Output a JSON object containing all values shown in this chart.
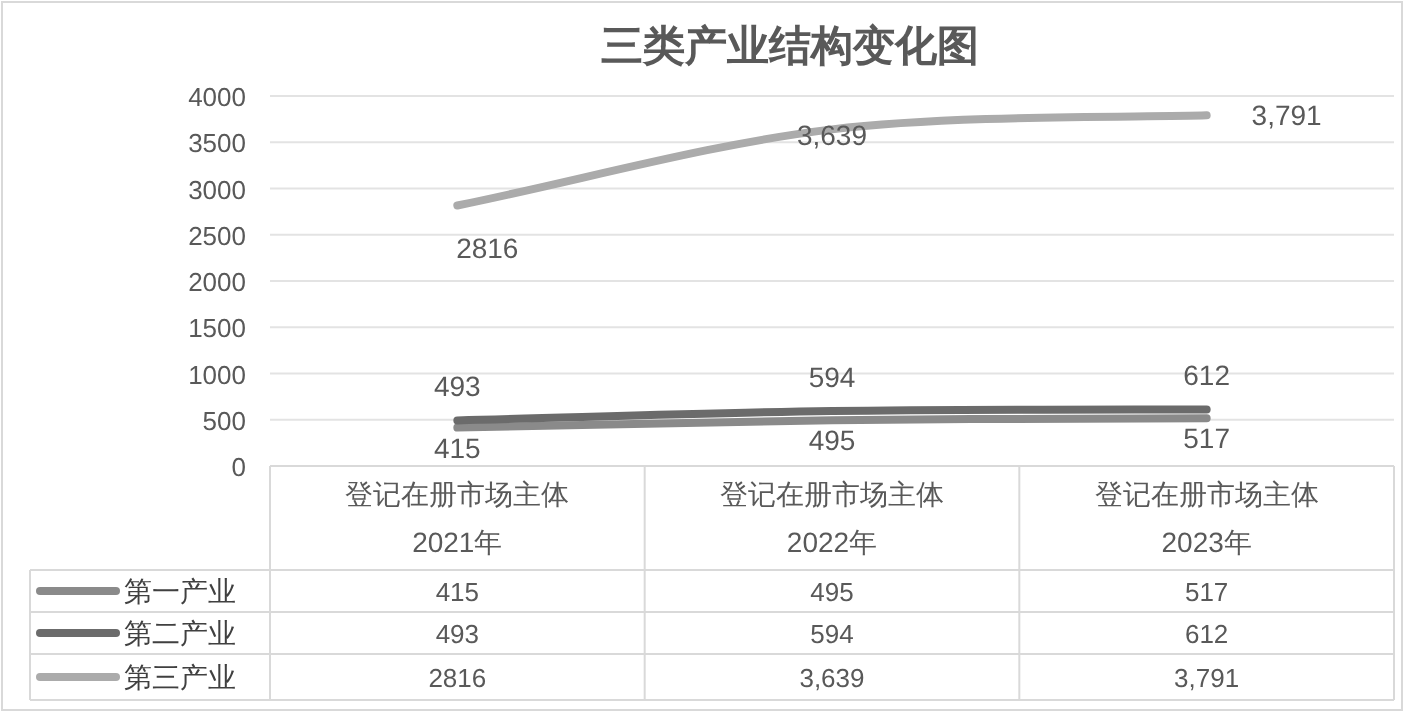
{
  "chart_data": {
    "type": "line",
    "title": "三类产业结构变化图",
    "categories": [
      "登记在册市场主体\n2021年",
      "登记在册市场主体\n2022年",
      "登记在册市场主体\n2023年"
    ],
    "series": [
      {
        "name": "第一产业",
        "color": "#8a8a8a",
        "values": [
          415,
          495,
          517
        ],
        "value_labels": [
          "415",
          "495",
          "517"
        ]
      },
      {
        "name": "第二产业",
        "color": "#6b6b6b",
        "values": [
          493,
          594,
          612
        ],
        "value_labels": [
          "493",
          "594",
          "612"
        ]
      },
      {
        "name": "第三产业",
        "color": "#ababab",
        "values": [
          2816,
          3639,
          3791
        ],
        "value_labels": [
          "2816",
          "3,639",
          "3,791"
        ]
      }
    ],
    "ylim": [
      0,
      4000
    ],
    "yticks": [
      0,
      500,
      1000,
      1500,
      2000,
      2500,
      3000,
      3500,
      4000
    ],
    "grid": "y",
    "legend": "bottom",
    "marker": "none",
    "line_style": "solid"
  }
}
